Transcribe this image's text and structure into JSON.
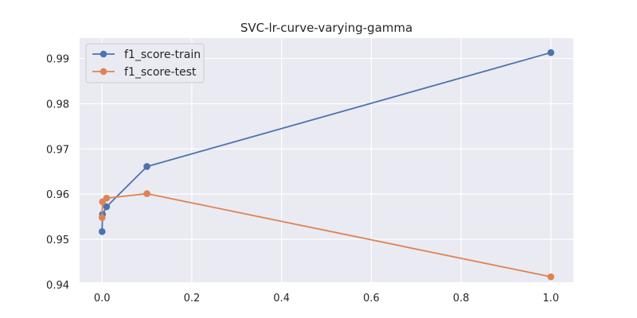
{
  "chart_data": {
    "type": "line",
    "title": "SVC-lr-curve-varying-gamma",
    "xlabel": "",
    "ylabel": "",
    "xlim": [
      -0.05,
      1.05
    ],
    "ylim": [
      0.9405,
      0.9945
    ],
    "xticks": [
      0.0,
      0.2,
      0.4,
      0.6,
      0.8,
      1.0
    ],
    "xtick_labels": [
      "0.0",
      "0.2",
      "0.4",
      "0.6",
      "0.8",
      "1.0"
    ],
    "yticks": [
      0.94,
      0.95,
      0.96,
      0.97,
      0.98,
      0.99
    ],
    "ytick_labels": [
      "0.94",
      "0.95",
      "0.96",
      "0.97",
      "0.98",
      "0.99"
    ],
    "grid": true,
    "legend_position": "top-left",
    "series": [
      {
        "name": "f1_score-train",
        "color": "#4c72b0",
        "x": [
          0.0001,
          0.001,
          0.01,
          0.1,
          1.0
        ],
        "y": [
          0.9517,
          0.9555,
          0.9572,
          0.9661,
          0.9913
        ]
      },
      {
        "name": "f1_score-test",
        "color": "#dd8452",
        "x": [
          0.0001,
          0.001,
          0.01,
          0.1,
          1.0
        ],
        "y": [
          0.9548,
          0.9583,
          0.9591,
          0.9601,
          0.9417
        ]
      }
    ]
  }
}
